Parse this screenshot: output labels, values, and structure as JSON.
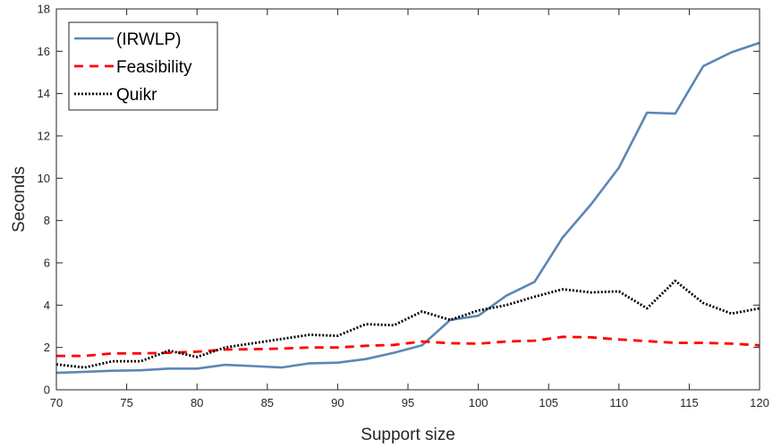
{
  "chart_data": {
    "type": "line",
    "xlabel": "Support size",
    "ylabel": "Seconds",
    "xlim": [
      70,
      120
    ],
    "ylim": [
      0,
      18
    ],
    "xticks": [
      70,
      75,
      80,
      85,
      90,
      95,
      100,
      105,
      110,
      115,
      120
    ],
    "yticks": [
      0,
      2,
      4,
      6,
      8,
      10,
      12,
      14,
      16,
      18
    ],
    "grid": false,
    "legend_position": "top-left",
    "x": [
      70,
      72,
      74,
      76,
      78,
      80,
      82,
      84,
      86,
      88,
      90,
      92,
      94,
      96,
      98,
      100,
      102,
      104,
      106,
      108,
      110,
      112,
      114,
      116,
      118,
      120
    ],
    "series": [
      {
        "name": "(IRWLP)",
        "color": "#5b87b5",
        "style": "solid",
        "values": [
          0.8,
          0.85,
          0.9,
          0.92,
          1.0,
          1.0,
          1.18,
          1.12,
          1.05,
          1.25,
          1.28,
          1.45,
          1.75,
          2.1,
          3.3,
          3.5,
          4.45,
          5.1,
          7.2,
          8.75,
          10.5,
          13.1,
          13.05,
          15.3,
          15.95,
          16.4
        ]
      },
      {
        "name": "Feasibility",
        "color": "#ff0000",
        "style": "dashed",
        "values": [
          1.6,
          1.6,
          1.72,
          1.72,
          1.75,
          1.8,
          1.9,
          1.92,
          1.95,
          2.0,
          2.0,
          2.08,
          2.12,
          2.28,
          2.2,
          2.18,
          2.28,
          2.32,
          2.5,
          2.48,
          2.38,
          2.3,
          2.22,
          2.22,
          2.18,
          2.1
        ]
      },
      {
        "name": "Quikr",
        "color": "#000000",
        "style": "dotted",
        "values": [
          1.2,
          1.05,
          1.35,
          1.35,
          1.85,
          1.55,
          2.0,
          2.2,
          2.4,
          2.6,
          2.55,
          3.1,
          3.05,
          3.7,
          3.3,
          3.75,
          4.0,
          4.4,
          4.75,
          4.6,
          4.65,
          3.85,
          5.15,
          4.1,
          3.6,
          3.85
        ]
      }
    ]
  }
}
